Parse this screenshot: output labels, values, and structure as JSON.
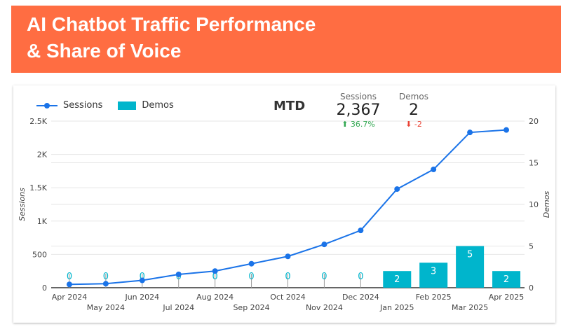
{
  "title": "AI Chatbot Traffic Performance & Share of Voice",
  "title_lines": [
    "AI Chatbot Traffic Performance",
    "& Share of Voice"
  ],
  "scorecard": {
    "label": "MTD",
    "sessions": {
      "label": "Sessions",
      "value": "2,367",
      "delta": "36.7%",
      "delta_dir": "up",
      "delta_color": "#34a853"
    },
    "demos": {
      "label": "Demos",
      "value": "2",
      "delta": "-2",
      "delta_dir": "down",
      "delta_color": "#ea4335"
    }
  },
  "colors": {
    "banner": "#ff6d42",
    "sessions": "#1a73e8",
    "demos": "#00b5cc"
  },
  "chart_data": {
    "type": "combo line+bar",
    "categories": [
      "Apr 2024",
      "May 2024",
      "Jun 2024",
      "Jul 2024",
      "Aug 2024",
      "Sep 2024",
      "Oct 2024",
      "Nov 2024",
      "Dec 2024",
      "Jan 2025",
      "Feb 2025",
      "Mar 2025",
      "Apr 2025"
    ],
    "series": [
      {
        "name": "Sessions",
        "type": "line",
        "axis": "left",
        "values": [
          50,
          60,
          110,
          200,
          250,
          360,
          470,
          650,
          860,
          1480,
          1775,
          2330,
          2367
        ]
      },
      {
        "name": "Demos",
        "type": "bar",
        "axis": "right",
        "values": [
          0,
          0,
          0,
          0,
          0,
          0,
          0,
          0,
          0,
          2,
          3,
          5,
          2
        ]
      }
    ],
    "ylabel": "Sessions",
    "ylim": [
      0,
      2500
    ],
    "yticks": [
      "0",
      "500",
      "1K",
      "1.5K",
      "2K",
      "2.5K"
    ],
    "y2label": "Demos",
    "y2lim": [
      0,
      20
    ],
    "y2ticks": [
      "0",
      "5",
      "10",
      "15",
      "20"
    ],
    "grid": true,
    "legend": "top-left"
  }
}
